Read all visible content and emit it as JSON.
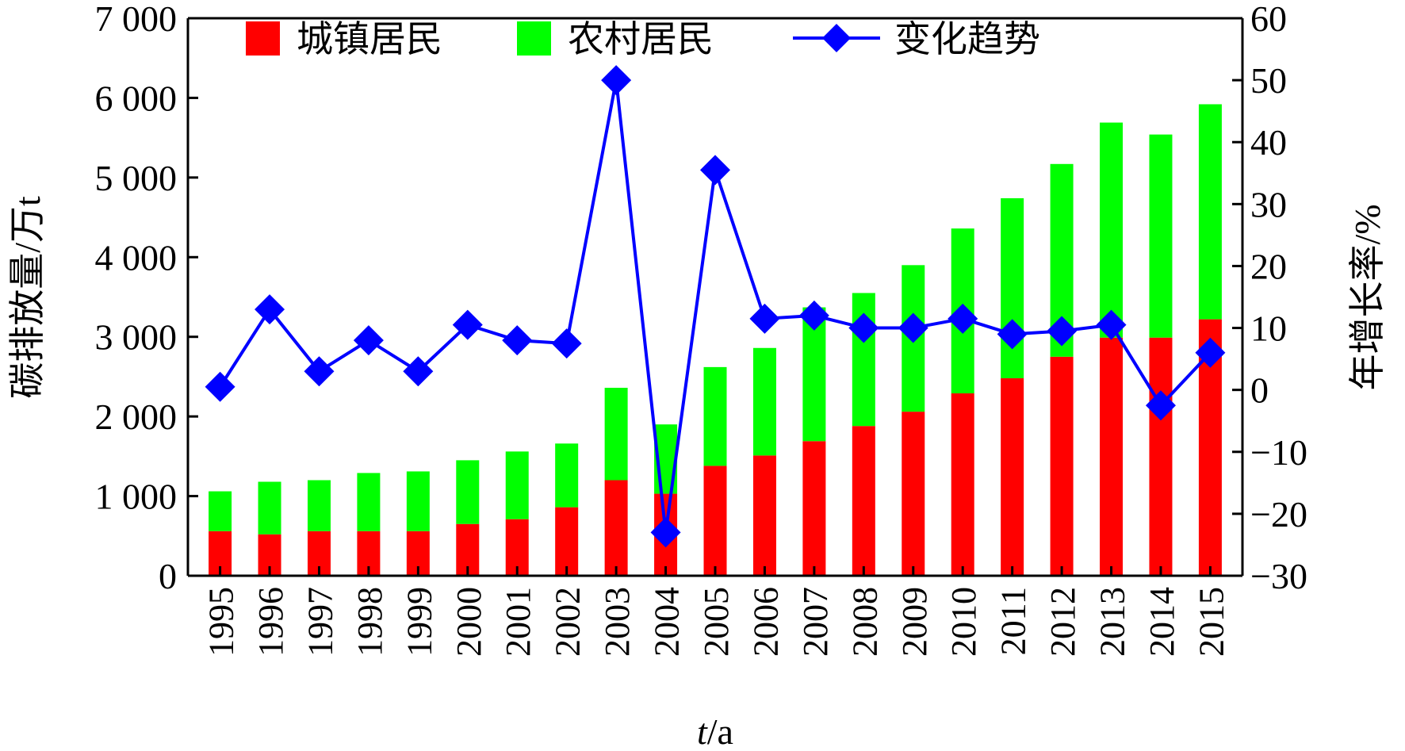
{
  "chart_data": {
    "type": "bar",
    "stacked": true,
    "categories": [
      "1995",
      "1996",
      "1997",
      "1998",
      "1999",
      "2000",
      "2001",
      "2002",
      "2003",
      "2004",
      "2005",
      "2006",
      "2007",
      "2008",
      "2009",
      "2010",
      "2011",
      "2012",
      "2013",
      "2014",
      "2015"
    ],
    "series": [
      {
        "name": "城镇居民",
        "type": "bar",
        "axis": "left",
        "color": "#ff0000",
        "values": [
          560,
          520,
          560,
          560,
          560,
          650,
          710,
          860,
          1200,
          1030,
          1380,
          1510,
          1690,
          1880,
          2060,
          2290,
          2480,
          2750,
          2990,
          2990,
          3220
        ]
      },
      {
        "name": "农村居民",
        "type": "bar",
        "axis": "left",
        "color": "#00ff00",
        "values": [
          500,
          660,
          640,
          730,
          750,
          800,
          850,
          800,
          1160,
          870,
          1240,
          1350,
          1680,
          1670,
          1840,
          2070,
          2260,
          2420,
          2700,
          2550,
          2700
        ]
      },
      {
        "name": "变化趋势",
        "type": "line",
        "axis": "right",
        "color": "#0000ff",
        "marker": "diamond",
        "values": [
          0.5,
          13,
          3,
          8,
          3,
          10.5,
          8,
          7.5,
          50,
          -23,
          35.5,
          11.5,
          12,
          10,
          10,
          11.5,
          9,
          9.5,
          10.5,
          -2.5,
          6
        ]
      }
    ],
    "xlabel_italic": "t",
    "xlabel_rest": "/a",
    "ylabel": "碳排放量/万t",
    "y2label": "年增长率/%",
    "ylim": [
      0,
      7000
    ],
    "y_ticks": [
      0,
      1000,
      2000,
      3000,
      4000,
      5000,
      6000,
      7000
    ],
    "y_tick_labels": [
      "0",
      "1 000",
      "2 000",
      "3 000",
      "4 000",
      "5 000",
      "6 000",
      "7 000"
    ],
    "y2lim": [
      -30,
      60
    ],
    "y2_ticks": [
      -30,
      -20,
      -10,
      0,
      10,
      20,
      30,
      40,
      50,
      60
    ],
    "y2_tick_labels": [
      "−30",
      "−20",
      "−10",
      "0",
      "10",
      "20",
      "30",
      "40",
      "50",
      "60"
    ],
    "legend_position": "top",
    "grid": false
  }
}
